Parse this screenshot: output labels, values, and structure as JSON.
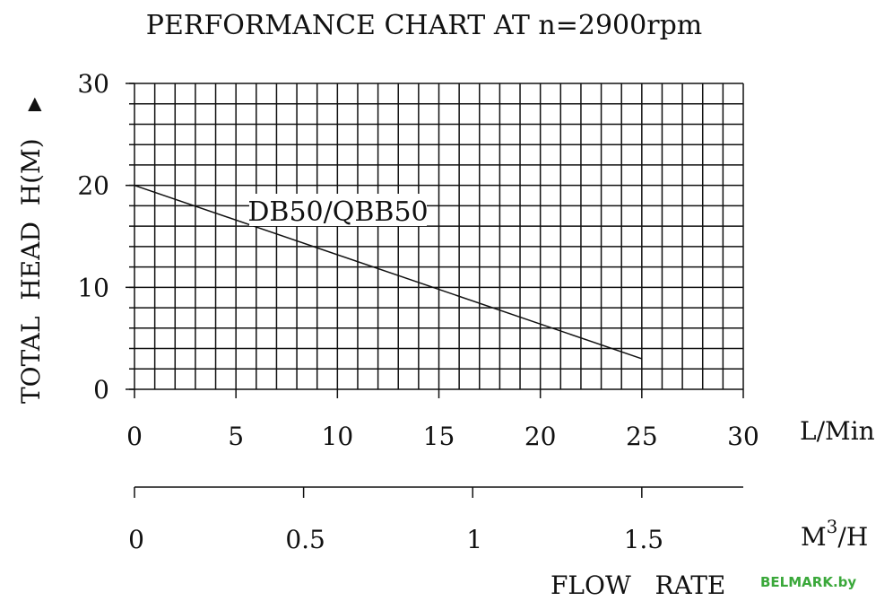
{
  "chart_data": {
    "type": "line",
    "title": "PERFORMANCE CHART AT n=2900rpm",
    "ylabel": "TOTAL  HEAD  H(M)",
    "ylabel_marker": "▶",
    "xlabel_primary_unit": "L/Min",
    "xlabel_secondary_unit_base": "M",
    "xlabel_secondary_unit_sup": "3",
    "xlabel_secondary_unit_tail": "/H",
    "xlabel": "FLOW   RATE",
    "xlim": [
      0,
      30
    ],
    "ylim": [
      0,
      30
    ],
    "x_ticks": [
      "0",
      "5",
      "10",
      "15",
      "20",
      "25",
      "30"
    ],
    "y_ticks": [
      "0",
      "10",
      "20",
      "30"
    ],
    "secondary_x_ticks": [
      {
        "label": "0",
        "value": 0
      },
      {
        "label": "0.5",
        "value": 0.5
      },
      {
        "label": "1",
        "value": 1
      },
      {
        "label": "1.5",
        "value": 1.5
      }
    ],
    "grid": true,
    "series": [
      {
        "name": "DB50/QBB50",
        "x": [
          0,
          25
        ],
        "y": [
          20,
          3
        ]
      }
    ]
  },
  "watermark": "BELMARK.by",
  "colors": {
    "line": "#111111",
    "watermark": "#3aa83a"
  }
}
